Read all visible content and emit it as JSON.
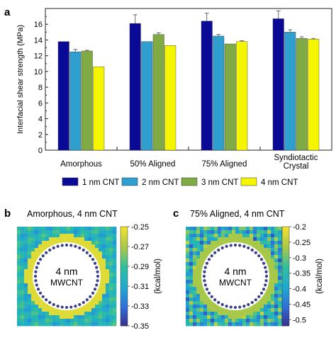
{
  "panels": {
    "a": "a",
    "b": "b",
    "c": "c"
  },
  "chart_data": [
    {
      "type": "bar",
      "title": "",
      "xlabel": "",
      "ylabel": "Interfacial shear strength (MPa)",
      "ylim": [
        0,
        18
      ],
      "yticks": [
        0,
        2,
        4,
        6,
        8,
        10,
        12,
        14,
        16
      ],
      "categories": [
        "Amorphous",
        "50% Aligned",
        "75% Aligned",
        "Syndiotactic Crystal"
      ],
      "category_lines": [
        [
          "Amorphous"
        ],
        [
          "50% Aligned"
        ],
        [
          "75% Aligned"
        ],
        [
          "Syndiotactic",
          "Crystal"
        ]
      ],
      "series": [
        {
          "name": "1 nm CNT",
          "color": "#0a0a96",
          "values": [
            13.8,
            16.1,
            16.4,
            16.7
          ],
          "errors": [
            0.0,
            1.1,
            1.0,
            1.0
          ]
        },
        {
          "name": "2 nm CNT",
          "color": "#2f9fd0",
          "values": [
            12.5,
            13.8,
            14.5,
            15.0
          ],
          "errors": [
            0.3,
            0.0,
            0.2,
            0.3
          ]
        },
        {
          "name": "3 nm CNT",
          "color": "#7faa44",
          "values": [
            12.6,
            14.7,
            13.5,
            14.2
          ],
          "errors": [
            0.1,
            0.2,
            0.0,
            0.2
          ]
        },
        {
          "name": "4 nm CNT",
          "color": "#f5f500",
          "values": [
            10.6,
            13.3,
            13.8,
            14.1
          ],
          "errors": [
            0.0,
            0.0,
            0.1,
            0.1
          ]
        }
      ],
      "grid": false,
      "legend": "bottom"
    },
    {
      "type": "heatmap",
      "title": "Amorphous, 4 nm CNT",
      "center_label": [
        "4 nm",
        "MWCNT"
      ],
      "colorbar_label": "(kcal/mol)",
      "colorbar_ticks": [
        "-0.25",
        "-0.27",
        "-0.29",
        "-0.31",
        "-0.33",
        "-0.35"
      ],
      "colorbar_range": [
        -0.35,
        -0.25
      ],
      "colors": [
        "#3a2a8a",
        "#2f6fd6",
        "#1fa8d0",
        "#2fbf9f",
        "#a8c84a",
        "#f0e030"
      ]
    },
    {
      "type": "heatmap",
      "title": "75% Aligned, 4 nm CNT",
      "center_label": [
        "4 nm",
        "MWCNT"
      ],
      "colorbar_label": "(kcal/mol)",
      "colorbar_ticks": [
        "-0.2",
        "-0.25",
        "-0.3",
        "-0.35",
        "-0.4",
        "-0.45",
        "-0.5"
      ],
      "colorbar_range": [
        -0.52,
        -0.2
      ],
      "colors": [
        "#3a2a8a",
        "#2f6fd6",
        "#1fa8d0",
        "#2fbf9f",
        "#a8c84a",
        "#f0e030"
      ]
    }
  ]
}
